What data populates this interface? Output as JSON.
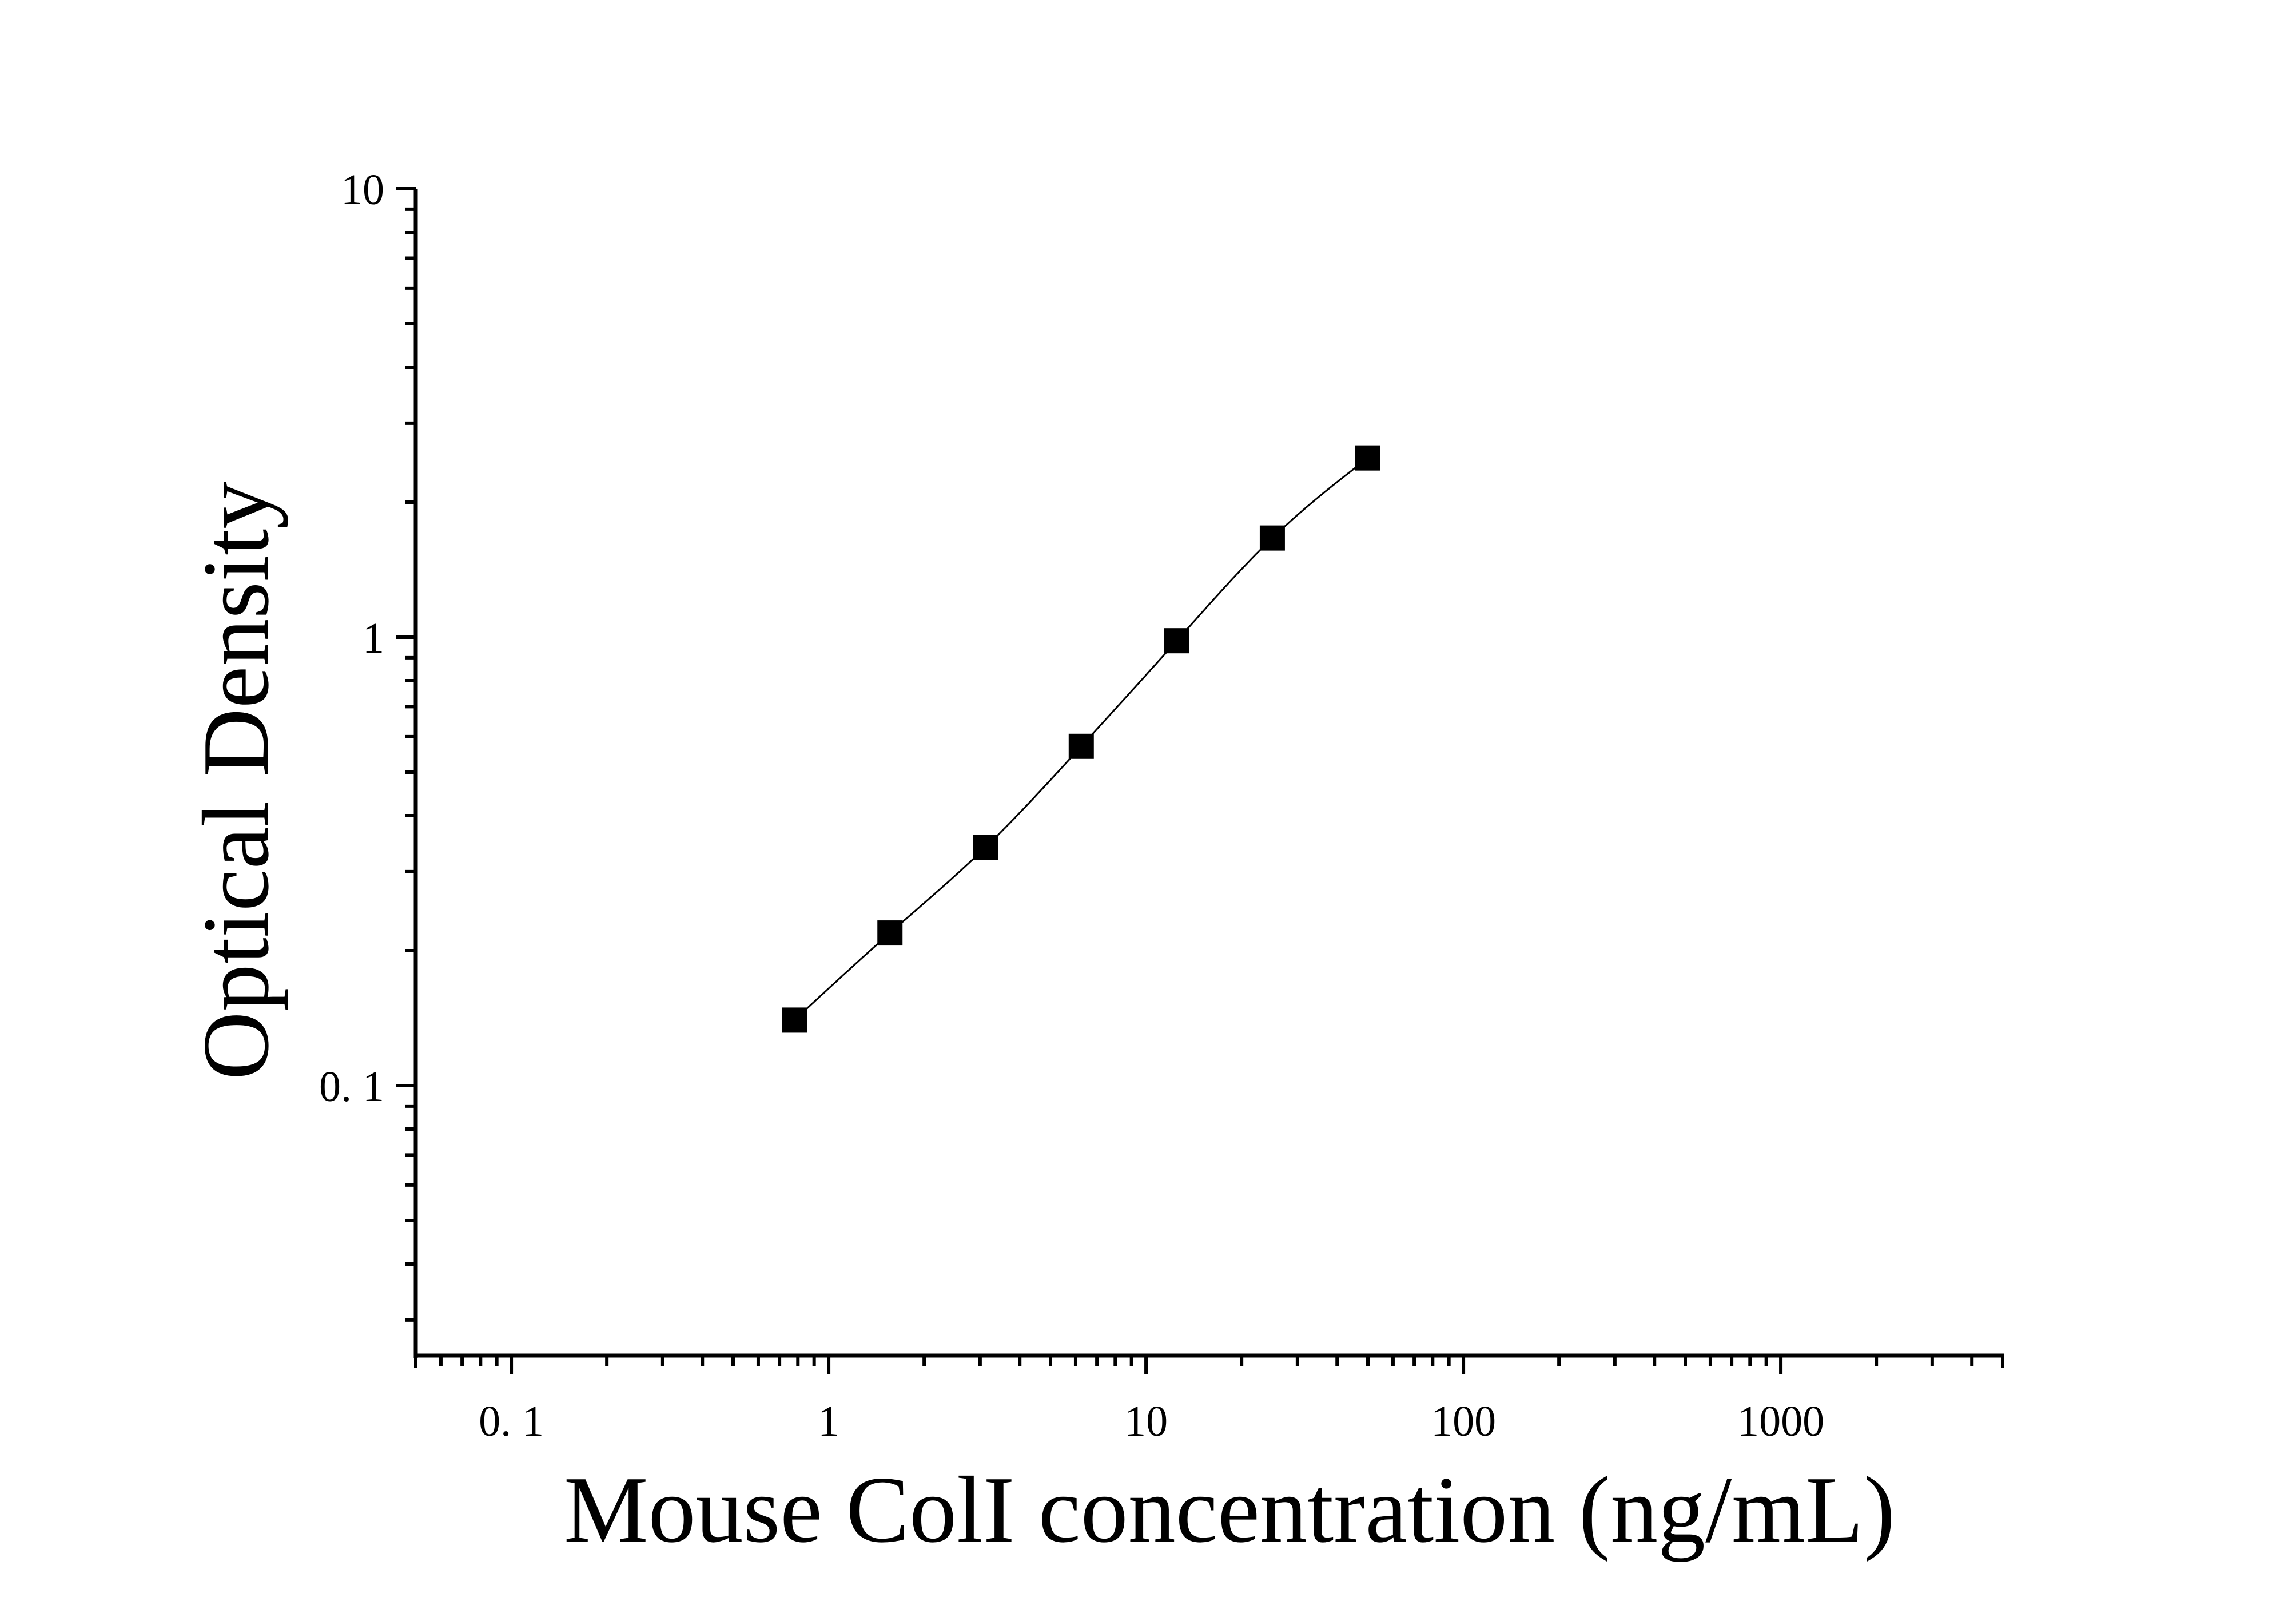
{
  "chart_data": {
    "type": "scatter",
    "title": "",
    "xlabel": "Mouse ColI concentration (ng/mL)",
    "ylabel": "Optical Density",
    "x_scale": "log",
    "y_scale": "log",
    "xlim": [
      0.05,
      5000
    ],
    "ylim": [
      0.025,
      10
    ],
    "x_ticks": [
      {
        "value": 0.1,
        "label": "0. 1"
      },
      {
        "value": 1,
        "label": "1"
      },
      {
        "value": 10,
        "label": "10"
      },
      {
        "value": 100,
        "label": "100"
      },
      {
        "value": 1000,
        "label": "1000"
      }
    ],
    "y_ticks": [
      {
        "value": 0.1,
        "label": "0. 1"
      },
      {
        "value": 1,
        "label": "1"
      },
      {
        "value": 10,
        "label": "10"
      }
    ],
    "grid": false,
    "legend": "none",
    "series": [
      {
        "marker": "square",
        "color": "#000000",
        "x": [
          0.78,
          1.56,
          3.12,
          6.25,
          12.5,
          25,
          50
        ],
        "y": [
          0.14,
          0.219,
          0.34,
          0.571,
          0.982,
          1.664,
          2.51
        ],
        "fit_line": true
      }
    ]
  }
}
